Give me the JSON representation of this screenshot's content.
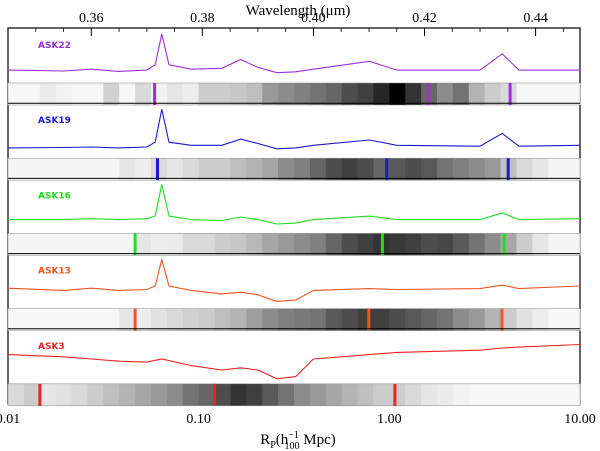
{
  "chart_data": {
    "type": "line",
    "title": "",
    "top_axis": {
      "label": "Wavelength (μm)",
      "range": [
        0.345,
        0.448
      ],
      "ticks": [
        0.36,
        0.38,
        0.4,
        0.42,
        0.44
      ],
      "tick_labels": [
        "0.36",
        "0.38",
        "0.40",
        "0.42",
        "0.44"
      ]
    },
    "bottom_axis": {
      "label": "R",
      "label_sub": "P",
      "label_unit_prefix": "(h",
      "label_unit_sup": "−1",
      "label_unit_sub": "100",
      "label_unit_suffix": " Mpc)",
      "scale": "log",
      "range": [
        0.01,
        10.0
      ],
      "ticks": [
        0.01,
        0.1,
        1.0,
        10.0
      ],
      "tick_labels": [
        "0.01",
        "0.10",
        "1.00",
        "10.00"
      ]
    },
    "series": [
      {
        "name": "ASK22",
        "color": "#9b30d9",
        "spectrum": [
          [
            0.345,
            0.18
          ],
          [
            0.355,
            0.16
          ],
          [
            0.36,
            0.2
          ],
          [
            0.365,
            0.15
          ],
          [
            0.37,
            0.18
          ],
          [
            0.3715,
            0.3
          ],
          [
            0.3727,
            1.0
          ],
          [
            0.374,
            0.3
          ],
          [
            0.378,
            0.2
          ],
          [
            0.3835,
            0.22
          ],
          [
            0.3869,
            0.42
          ],
          [
            0.39,
            0.24
          ],
          [
            0.3934,
            0.12
          ],
          [
            0.3968,
            0.14
          ],
          [
            0.4,
            0.2
          ],
          [
            0.4101,
            0.38
          ],
          [
            0.415,
            0.18
          ],
          [
            0.43,
            0.18
          ],
          [
            0.434,
            0.55
          ],
          [
            0.437,
            0.18
          ],
          [
            0.448,
            0.18
          ]
        ],
        "gray_cells": [
          0.97,
          0.97,
          0.92,
          0.95,
          0.97,
          0.97,
          0.82,
          0.97,
          0.85,
          0.95,
          0.9,
          0.93,
          0.8,
          0.8,
          0.78,
          0.75,
          0.6,
          0.55,
          0.5,
          0.45,
          0.4,
          0.3,
          0.25,
          0.15,
          0.0,
          0.2,
          0.4,
          0.55,
          0.45,
          0.7,
          0.8,
          0.85,
          0.97,
          0.97,
          0.97,
          0.97
        ],
        "markers": [
          0.0587,
          1.6,
          4.3
        ]
      },
      {
        "name": "ASK19",
        "color": "#1a1acc",
        "spectrum": [
          [
            0.345,
            0.12
          ],
          [
            0.355,
            0.13
          ],
          [
            0.36,
            0.14
          ],
          [
            0.365,
            0.12
          ],
          [
            0.37,
            0.14
          ],
          [
            0.3715,
            0.25
          ],
          [
            0.3727,
            1.0
          ],
          [
            0.374,
            0.25
          ],
          [
            0.378,
            0.18
          ],
          [
            0.3835,
            0.18
          ],
          [
            0.3869,
            0.32
          ],
          [
            0.39,
            0.22
          ],
          [
            0.3934,
            0.1
          ],
          [
            0.3968,
            0.12
          ],
          [
            0.4,
            0.18
          ],
          [
            0.4101,
            0.3
          ],
          [
            0.415,
            0.18
          ],
          [
            0.43,
            0.16
          ],
          [
            0.434,
            0.45
          ],
          [
            0.437,
            0.16
          ],
          [
            0.448,
            0.18
          ]
        ],
        "gray_cells": [
          0.96,
          0.96,
          0.96,
          0.96,
          0.96,
          0.96,
          0.96,
          0.9,
          0.93,
          0.85,
          0.9,
          0.85,
          0.8,
          0.8,
          0.75,
          0.7,
          0.65,
          0.55,
          0.5,
          0.4,
          0.3,
          0.25,
          0.3,
          0.4,
          0.35,
          0.3,
          0.35,
          0.45,
          0.5,
          0.55,
          0.6,
          0.75,
          0.85,
          0.9,
          0.96,
          0.96
        ],
        "markers": [
          0.0608,
          0.97,
          4.2
        ]
      },
      {
        "name": "ASK16",
        "color": "#22dd22",
        "spectrum": [
          [
            0.345,
            0.2
          ],
          [
            0.355,
            0.2
          ],
          [
            0.36,
            0.22
          ],
          [
            0.365,
            0.2
          ],
          [
            0.37,
            0.22
          ],
          [
            0.3715,
            0.28
          ],
          [
            0.3727,
            1.0
          ],
          [
            0.374,
            0.28
          ],
          [
            0.378,
            0.2
          ],
          [
            0.3835,
            0.18
          ],
          [
            0.3869,
            0.26
          ],
          [
            0.39,
            0.2
          ],
          [
            0.3934,
            0.1
          ],
          [
            0.3968,
            0.12
          ],
          [
            0.4,
            0.2
          ],
          [
            0.4101,
            0.28
          ],
          [
            0.415,
            0.2
          ],
          [
            0.43,
            0.2
          ],
          [
            0.434,
            0.35
          ],
          [
            0.437,
            0.2
          ],
          [
            0.448,
            0.22
          ]
        ],
        "gray_cells": [
          0.96,
          0.96,
          0.96,
          0.96,
          0.96,
          0.96,
          0.96,
          0.96,
          0.9,
          0.93,
          0.92,
          0.85,
          0.85,
          0.8,
          0.78,
          0.72,
          0.65,
          0.6,
          0.55,
          0.5,
          0.4,
          0.3,
          0.25,
          0.2,
          0.22,
          0.25,
          0.3,
          0.28,
          0.35,
          0.45,
          0.55,
          0.65,
          0.8,
          0.9,
          0.96,
          0.96
        ],
        "markers": [
          0.0464,
          0.92,
          4.0
        ]
      },
      {
        "name": "ASK13",
        "color": "#ee5522",
        "spectrum": [
          [
            0.345,
            0.35
          ],
          [
            0.355,
            0.3
          ],
          [
            0.36,
            0.35
          ],
          [
            0.365,
            0.3
          ],
          [
            0.37,
            0.32
          ],
          [
            0.3715,
            0.4
          ],
          [
            0.3727,
            1.0
          ],
          [
            0.374,
            0.4
          ],
          [
            0.378,
            0.3
          ],
          [
            0.3835,
            0.22
          ],
          [
            0.3869,
            0.26
          ],
          [
            0.39,
            0.2
          ],
          [
            0.3934,
            0.05
          ],
          [
            0.3968,
            0.08
          ],
          [
            0.4,
            0.3
          ],
          [
            0.4101,
            0.34
          ],
          [
            0.415,
            0.32
          ],
          [
            0.43,
            0.34
          ],
          [
            0.434,
            0.42
          ],
          [
            0.437,
            0.34
          ],
          [
            0.448,
            0.4
          ]
        ],
        "gray_cells": [
          0.97,
          0.97,
          0.97,
          0.97,
          0.97,
          0.97,
          0.97,
          0.9,
          0.93,
          0.88,
          0.85,
          0.82,
          0.8,
          0.75,
          0.7,
          0.62,
          0.55,
          0.5,
          0.48,
          0.45,
          0.35,
          0.3,
          0.25,
          0.25,
          0.3,
          0.35,
          0.4,
          0.45,
          0.55,
          0.6,
          0.7,
          0.8,
          0.88,
          0.93,
          0.97,
          0.97
        ],
        "markers": [
          0.0464,
          0.78,
          3.9
        ]
      },
      {
        "name": "ASK3",
        "color": "#ee2222",
        "spectrum": [
          [
            0.345,
            0.55
          ],
          [
            0.355,
            0.5
          ],
          [
            0.36,
            0.45
          ],
          [
            0.365,
            0.4
          ],
          [
            0.37,
            0.38
          ],
          [
            0.3727,
            0.45
          ],
          [
            0.378,
            0.3
          ],
          [
            0.3835,
            0.2
          ],
          [
            0.3869,
            0.25
          ],
          [
            0.39,
            0.2
          ],
          [
            0.3934,
            0.0
          ],
          [
            0.3968,
            0.05
          ],
          [
            0.4,
            0.45
          ],
          [
            0.4101,
            0.55
          ],
          [
            0.415,
            0.6
          ],
          [
            0.43,
            0.65
          ],
          [
            0.434,
            0.7
          ],
          [
            0.437,
            0.72
          ],
          [
            0.448,
            0.78
          ]
        ],
        "gray_cells": [
          0.85,
          0.8,
          0.9,
          0.88,
          0.85,
          0.8,
          0.75,
          0.7,
          0.65,
          0.6,
          0.55,
          0.45,
          0.4,
          0.3,
          0.2,
          0.25,
          0.35,
          0.45,
          0.55,
          0.6,
          0.65,
          0.7,
          0.75,
          0.8,
          0.8,
          0.85,
          0.9,
          0.92,
          0.95,
          0.97,
          0.97,
          0.97,
          0.97,
          0.97,
          0.97,
          0.97
        ],
        "markers": [
          0.0147,
          0.121,
          1.07
        ]
      }
    ]
  }
}
